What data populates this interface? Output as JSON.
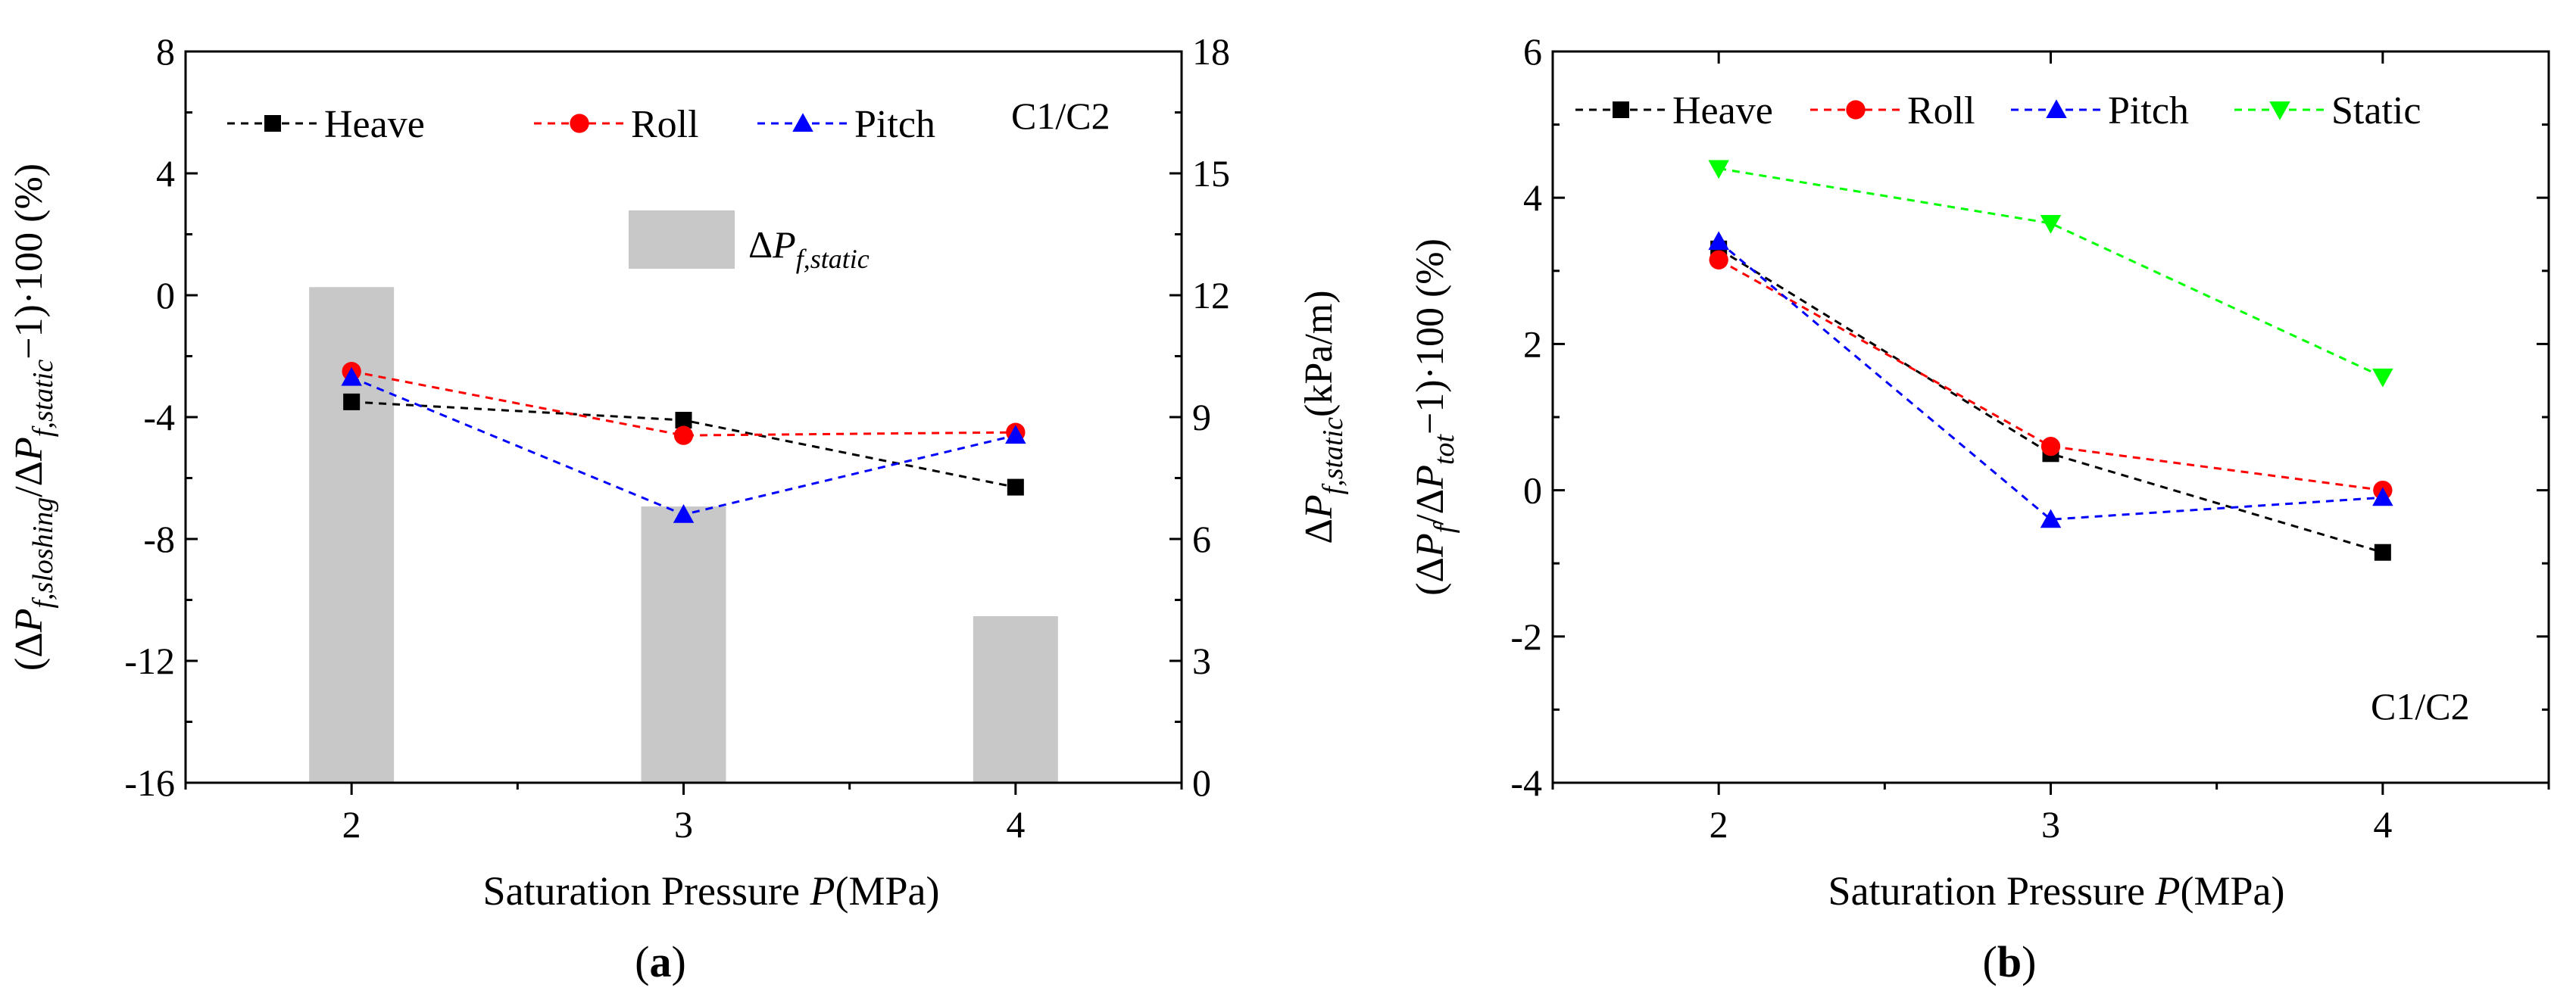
{
  "chart_data": [
    {
      "type": "bar+line",
      "panel_label": "(a)",
      "annotation": "C1/C2",
      "xlabel": "Saturation Pressure P(MPa)",
      "ylabel_left": "(ΔP_f,sloshing/ΔP_f,static−1)·100 (%)",
      "ylabel_right": "ΔP_f,static(kPa/m)",
      "categories": [
        2,
        3,
        4
      ],
      "xlim": [
        1.5,
        4.5
      ],
      "ylim_left": [
        -16,
        8
      ],
      "ylim_right": [
        0,
        18
      ],
      "left_ticks": [
        -16,
        -12,
        -8,
        -4,
        0,
        4,
        8
      ],
      "right_ticks": [
        0,
        3,
        6,
        9,
        12,
        15,
        18
      ],
      "series": [
        {
          "name": "Heave",
          "values": [
            -3.5,
            -4.1,
            -6.3
          ],
          "color": "#000000",
          "marker": "square"
        },
        {
          "name": "Roll",
          "values": [
            -2.5,
            -4.6,
            -4.5
          ],
          "color": "#ff0000",
          "marker": "circle"
        },
        {
          "name": "Pitch",
          "values": [
            -2.7,
            -7.2,
            -4.6
          ],
          "color": "#0000ff",
          "marker": "triangle-up"
        }
      ],
      "bars": {
        "name": "ΔP_f,static",
        "values": [
          12.2,
          6.8,
          4.1
        ],
        "color": "#c8c8c8",
        "axis": "right"
      }
    },
    {
      "type": "line",
      "panel_label": "(b)",
      "annotation": "C1/C2",
      "xlabel": "Saturation Pressure P(MPa)",
      "ylabel": "(ΔP_f/ΔP_tot−1)·100 (%)",
      "categories": [
        2,
        3,
        4
      ],
      "xlim": [
        1.5,
        4.5
      ],
      "ylim": [
        -4,
        6
      ],
      "y_ticks": [
        -4,
        -2,
        0,
        2,
        4,
        6
      ],
      "series": [
        {
          "name": "Heave",
          "values": [
            3.3,
            0.5,
            -0.85
          ],
          "color": "#000000",
          "marker": "square"
        },
        {
          "name": "Roll",
          "values": [
            3.15,
            0.6,
            0.0
          ],
          "color": "#ff0000",
          "marker": "circle"
        },
        {
          "name": "Pitch",
          "values": [
            3.4,
            -0.4,
            -0.1
          ],
          "color": "#0000ff",
          "marker": "triangle-up"
        },
        {
          "name": "Static",
          "values": [
            4.4,
            3.65,
            1.55
          ],
          "color": "#00ff00",
          "marker": "triangle-down"
        }
      ]
    }
  ]
}
